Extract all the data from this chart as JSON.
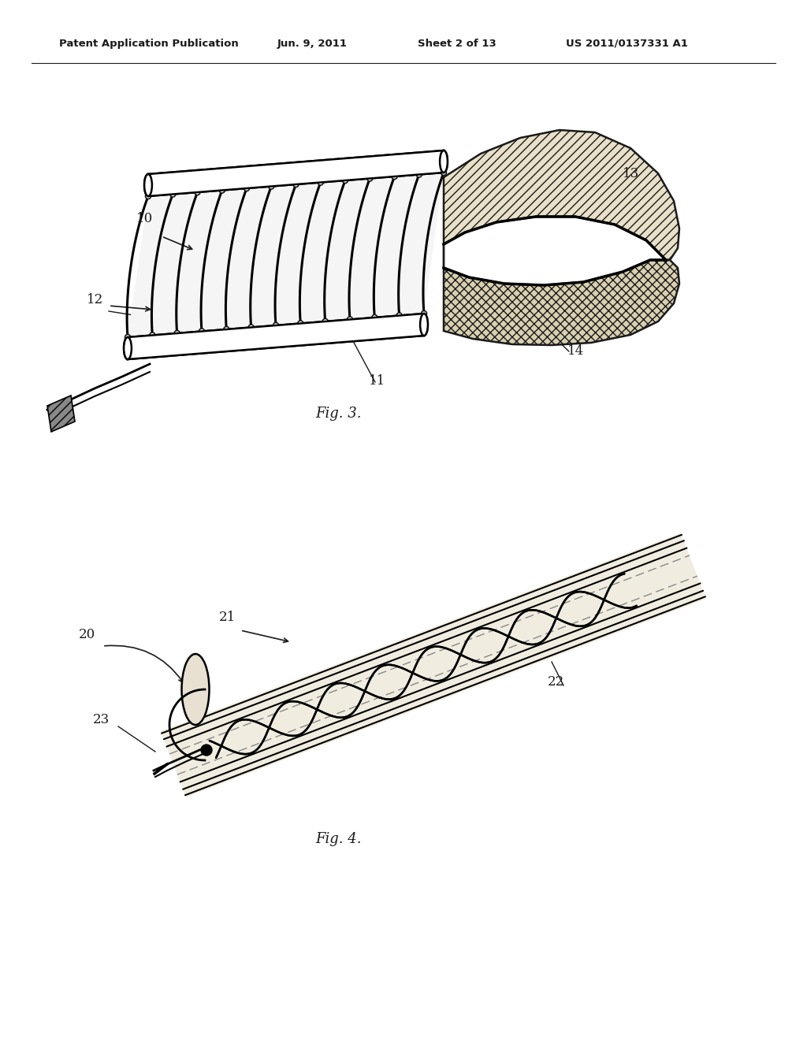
{
  "background_color": "#ffffff",
  "header_text": "Patent Application Publication",
  "header_date": "Jun. 9, 2011",
  "header_sheet": "Sheet 2 of 13",
  "header_patent": "US 2011/0137331 A1",
  "fig3_caption": "Fig. 3.",
  "fig4_caption": "Fig. 4.",
  "line_color": "#1a1a1a",
  "hatch_color": "#444444"
}
